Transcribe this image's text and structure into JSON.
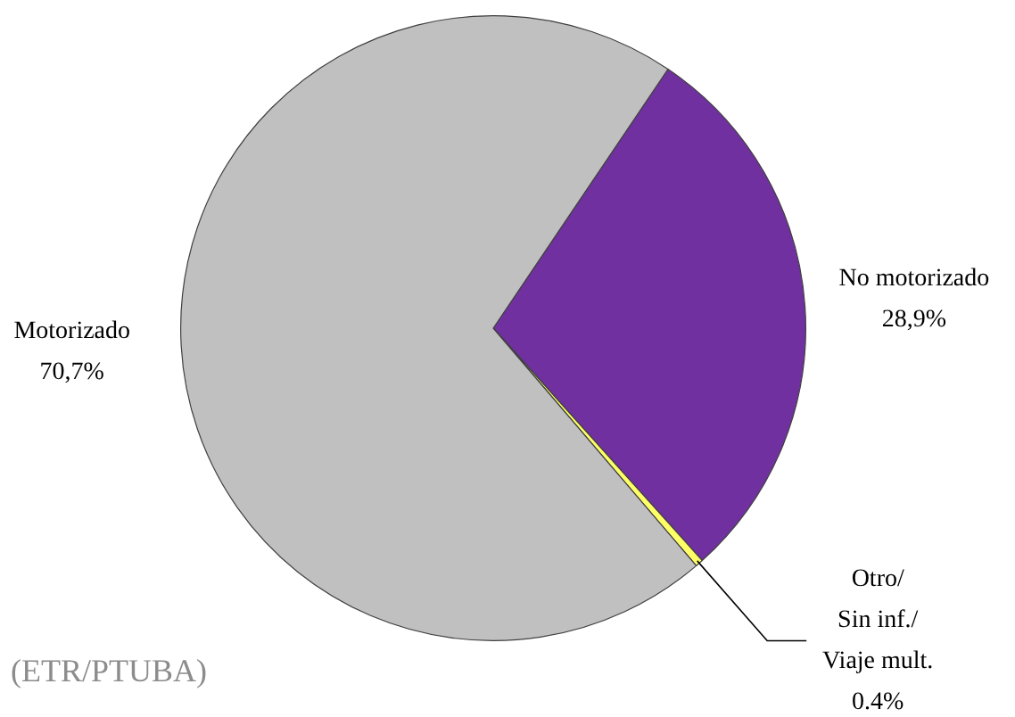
{
  "chart_data": {
    "type": "pie",
    "categories": [
      "No motorizado",
      "Otro/ Sin inf./ Viaje mult.",
      "Motorizado"
    ],
    "values": [
      28.9,
      0.4,
      70.7
    ],
    "colors": [
      "#7030a0",
      "#ffff66",
      "#c0c0c0"
    ],
    "value_labels": [
      "28,9%",
      "0.4%",
      "70,7%"
    ],
    "legend": false,
    "annotations": [
      "(ETR/PTUBA)"
    ]
  }
}
